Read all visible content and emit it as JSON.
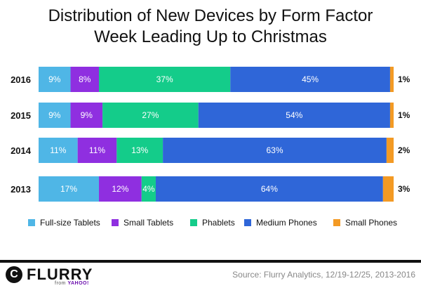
{
  "title_line1": "Distribution of New Devices by Form Factor",
  "title_line2": "Week Leading Up to Christmas",
  "source": "Source: Flurry Analytics, 12/19-12/25, 2013-2016",
  "logo": {
    "name": "FLURRY",
    "sub_prefix": "from ",
    "sub_brand": "YAHOO!",
    "mark": "C"
  },
  "chart_data": {
    "type": "bar",
    "orientation": "horizontal",
    "stacked": true,
    "unit": "%",
    "categories": [
      "2016",
      "2015",
      "2014",
      "2013"
    ],
    "series": [
      {
        "name": "Full-size Tablets",
        "color": "#4fb6e6",
        "values": [
          9,
          9,
          11,
          17
        ],
        "labels": [
          "9%",
          "9%",
          "11%",
          "17%"
        ]
      },
      {
        "name": "Small Tablets",
        "color": "#8f2fe0",
        "values": [
          8,
          9,
          11,
          12
        ],
        "labels": [
          "8%",
          "9%",
          "11%",
          "12%"
        ]
      },
      {
        "name": "Phablets",
        "color": "#14cc8a",
        "values": [
          37,
          27,
          13,
          4
        ],
        "labels": [
          "37%",
          "27%",
          "13%",
          "4%"
        ]
      },
      {
        "name": "Medium Phones",
        "color": "#2f66d8",
        "values": [
          45,
          54,
          63,
          64
        ],
        "labels": [
          "45%",
          "54%",
          "63%",
          "64%"
        ]
      },
      {
        "name": "Small Phones",
        "color": "#f39a24",
        "values": [
          1,
          1,
          2,
          3
        ],
        "labels": [
          "1%",
          "1%",
          "2%",
          "3%"
        ]
      }
    ],
    "legend_position": "bottom",
    "grid": false
  }
}
